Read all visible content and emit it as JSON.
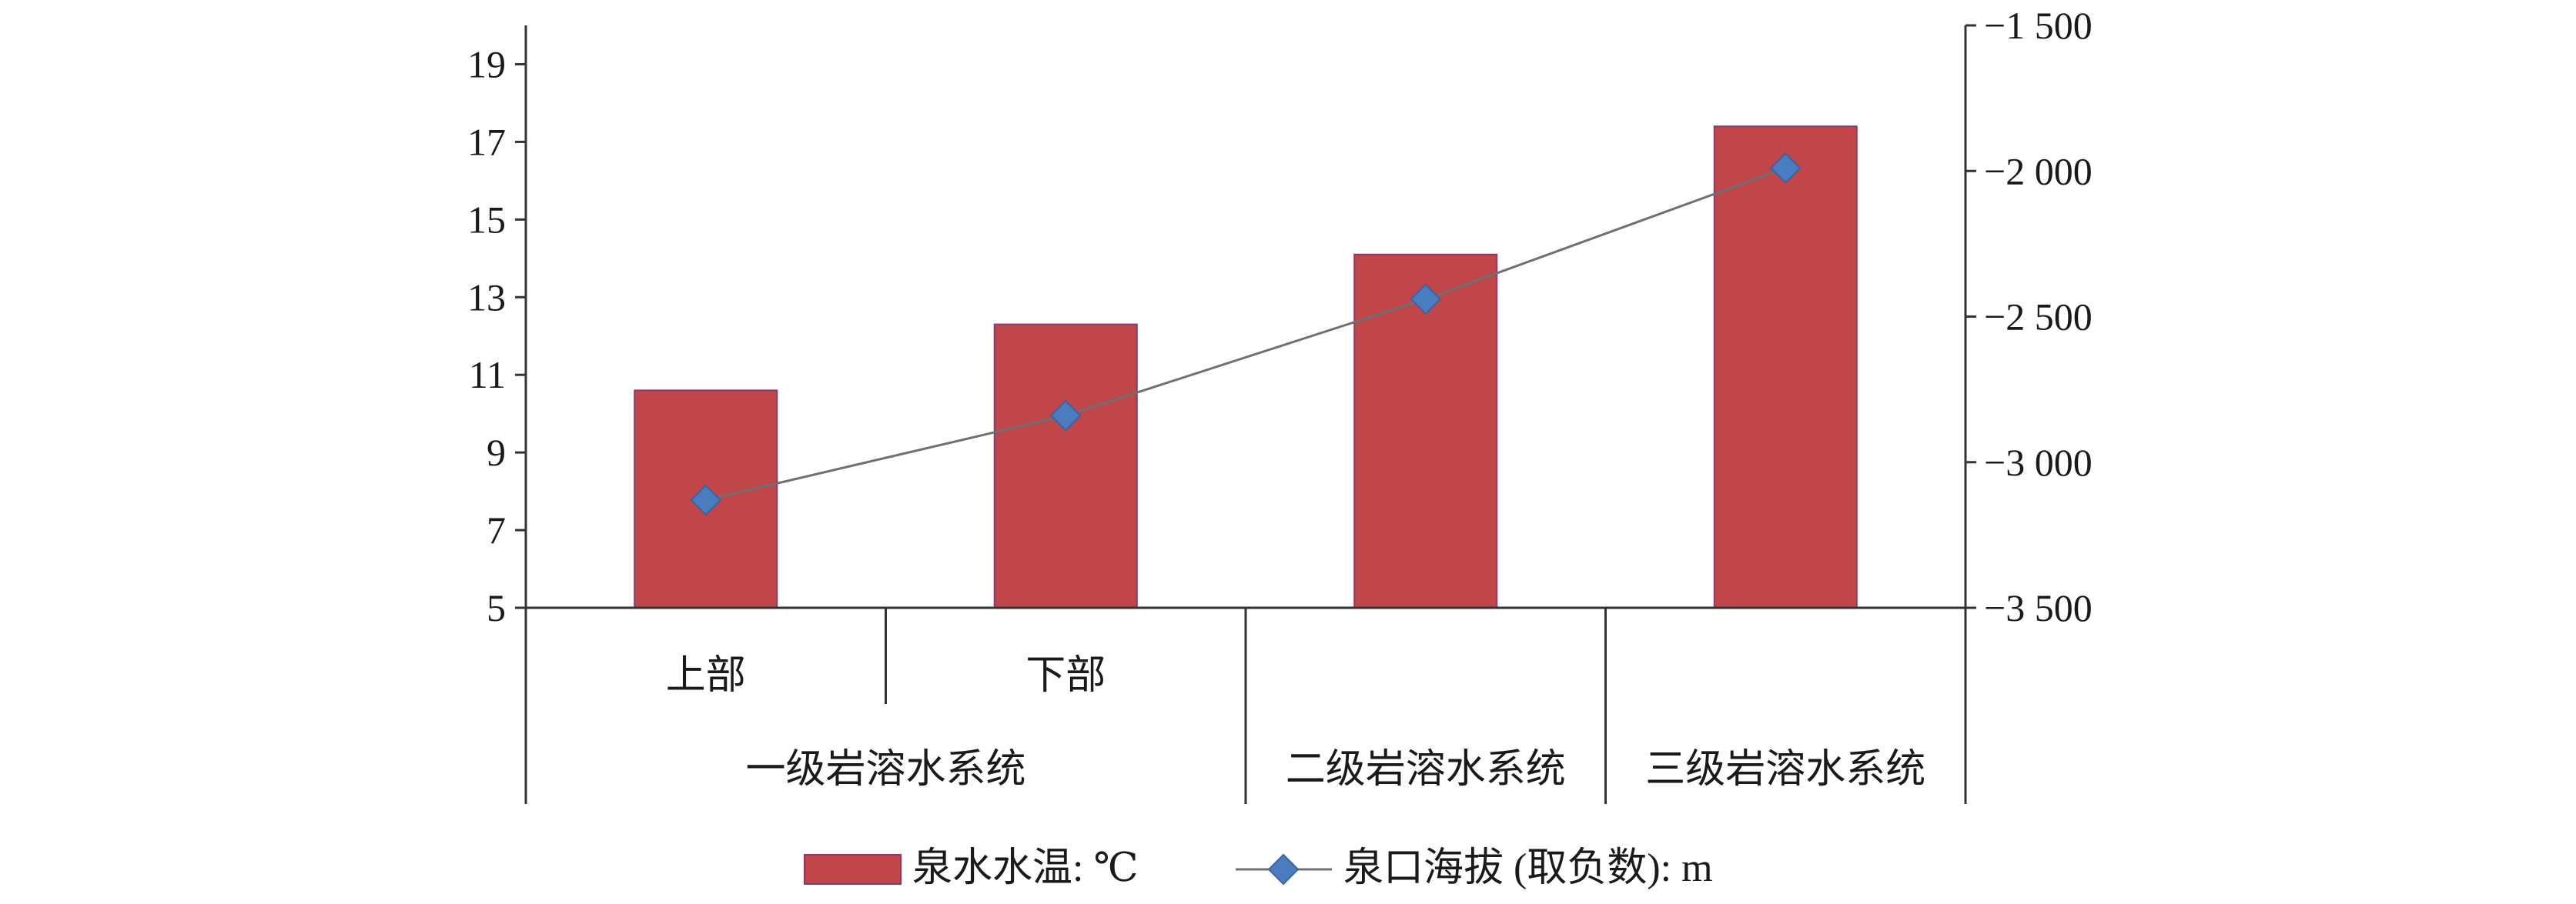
{
  "chart_data": {
    "type": "bar",
    "categories": [
      "上部",
      "下部",
      "二级岩溶水系统",
      "三级岩溶水系统"
    ],
    "category_groups": [
      {
        "label": "一级岩溶水系统",
        "members": [
          "上部",
          "下部"
        ]
      },
      {
        "label": "二级岩溶水系统",
        "members": [
          "二级岩溶水系统"
        ]
      },
      {
        "label": "三级岩溶水系统",
        "members": [
          "三级岩溶水系统"
        ]
      }
    ],
    "series": [
      {
        "name": "泉水水温: ℃",
        "type": "bar",
        "axis": "left",
        "values": [
          10.6,
          12.3,
          14.1,
          17.4
        ],
        "color": "#c0464a"
      },
      {
        "name": "泉口海拔 (取负数): m",
        "type": "line",
        "axis": "right",
        "values": [
          -3130,
          -2840,
          -2440,
          -1990
        ],
        "color": "#4a7cc0",
        "line_color": "#707070"
      }
    ],
    "y_left": {
      "min": 5,
      "max": 20,
      "ticks": [
        5,
        7,
        9,
        11,
        13,
        15,
        17,
        19
      ]
    },
    "y_right": {
      "min": -3500,
      "max": -1500,
      "ticks": [
        -3500,
        -3000,
        -2500,
        -2000,
        -1500
      ],
      "tick_labels": [
        "−3 500",
        "−3 000",
        "−2 500",
        "−2 000",
        "−1 500"
      ]
    },
    "grid": false,
    "legend": "bottom-center"
  }
}
